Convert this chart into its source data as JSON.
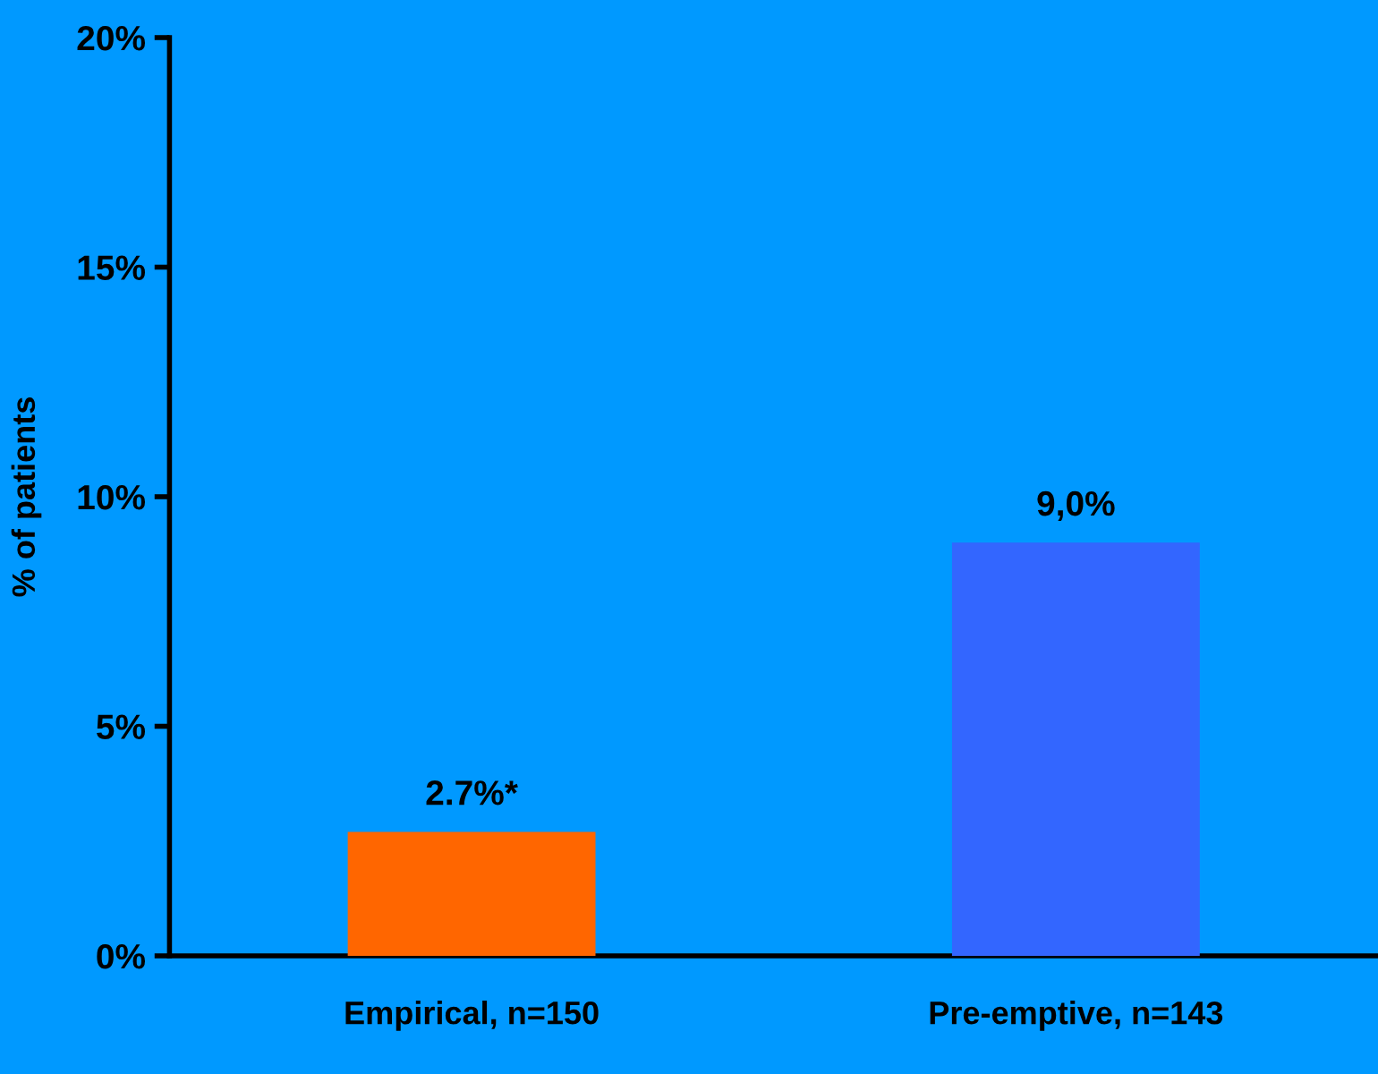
{
  "chart_data": {
    "type": "bar",
    "ylabel": "% of patients",
    "categories": [
      "Empirical, n=150",
      "Pre-emptive, n=143"
    ],
    "values": [
      2.7,
      9.0
    ],
    "colors": [
      "#ff6600",
      "#3366ff"
    ],
    "value_labels": [
      "2.7%*",
      "9,0%"
    ],
    "ylim": [
      0,
      20
    ],
    "yticks": [
      {
        "value": 0,
        "label": "0%"
      },
      {
        "value": 5,
        "label": "5%"
      },
      {
        "value": 10,
        "label": "10%"
      },
      {
        "value": 15,
        "label": "15%"
      },
      {
        "value": 20,
        "label": "20%"
      }
    ],
    "grid": false,
    "legend": false
  }
}
